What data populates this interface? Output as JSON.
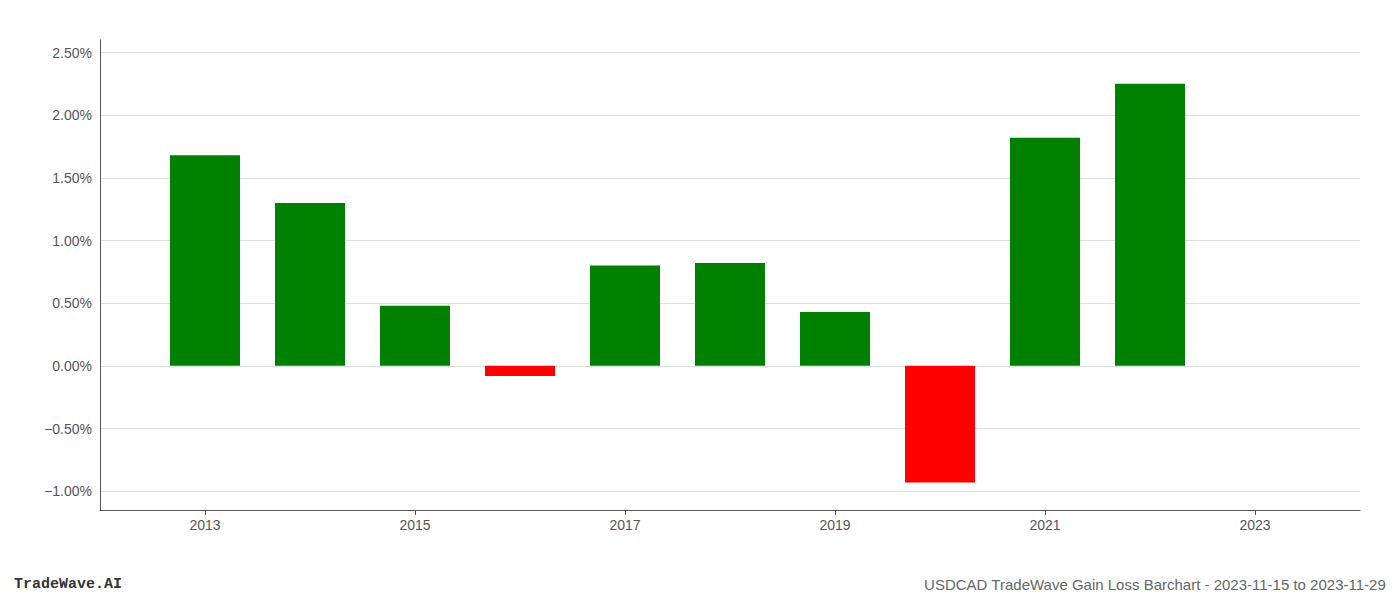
{
  "chart_data": {
    "type": "bar",
    "x": [
      2013,
      2014,
      2015,
      2016,
      2017,
      2018,
      2019,
      2020,
      2021,
      2022
    ],
    "values": [
      1.68,
      1.3,
      0.48,
      -0.08,
      0.8,
      0.82,
      0.43,
      -0.93,
      1.82,
      2.25
    ],
    "colors": [
      "#008000",
      "#008000",
      "#008000",
      "#ff0000",
      "#008000",
      "#008000",
      "#008000",
      "#ff0000",
      "#008000",
      "#008000"
    ],
    "xlim": [
      2012,
      2024
    ],
    "xticks": [
      2013,
      2015,
      2017,
      2019,
      2021,
      2023
    ],
    "ylim": [
      -1.15,
      2.6
    ],
    "yticks": [
      {
        "value": -1.0,
        "label": "−1.00%"
      },
      {
        "value": -0.5,
        "label": "−0.50%"
      },
      {
        "value": 0.0,
        "label": "0.00%"
      },
      {
        "value": 0.5,
        "label": "0.50%"
      },
      {
        "value": 1.0,
        "label": "1.00%"
      },
      {
        "value": 1.5,
        "label": "1.50%"
      },
      {
        "value": 2.0,
        "label": "2.00%"
      },
      {
        "value": 2.5,
        "label": "2.50%"
      }
    ],
    "grid": true,
    "annotations": [
      "TradeWave.AI",
      "USDCAD TradeWave Gain Loss Barchart - 2023-11-15 to 2023-11-29"
    ]
  }
}
